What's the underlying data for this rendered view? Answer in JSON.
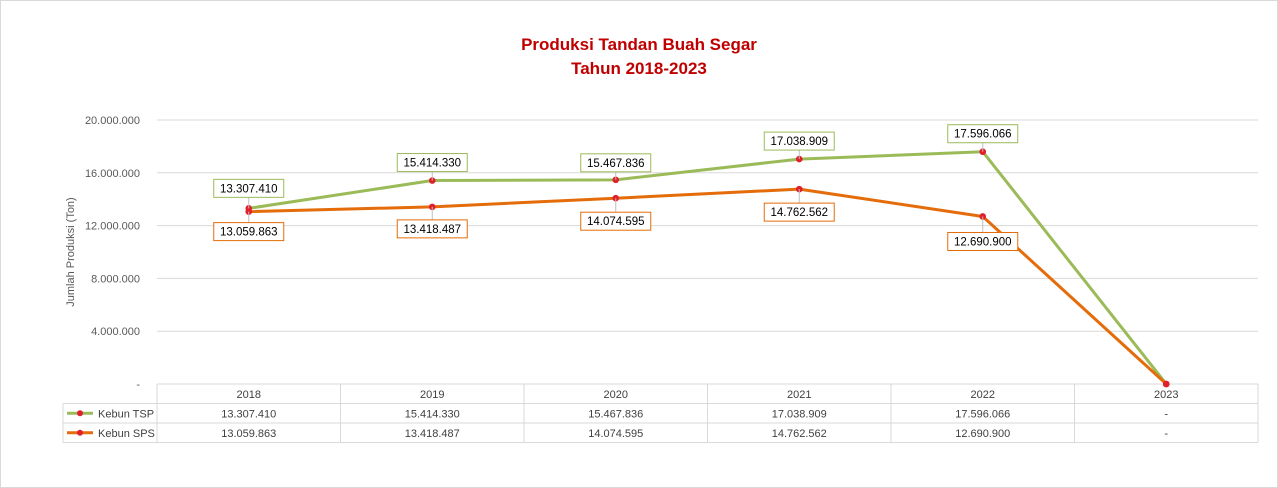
{
  "chart_data": {
    "type": "line",
    "title": "Produksi Tandan Buah Segar",
    "subtitle": "Tahun 2018-2023",
    "ylabel": "Jumlah Produksi (Ton)",
    "ylim": [
      0,
      20000000
    ],
    "yticks": [
      0,
      4000000,
      8000000,
      12000000,
      16000000,
      20000000
    ],
    "ytick_labels": [
      "-",
      "4.000.000",
      "8.000.000",
      "12.000.000",
      "16.000.000",
      "20.000.000"
    ],
    "categories": [
      "2018",
      "2019",
      "2020",
      "2021",
      "2022",
      "2023"
    ],
    "grid": true,
    "legend": "data-table",
    "series": [
      {
        "name": "Kebun TSP",
        "color": "#9bbb59",
        "values": [
          13307410,
          15414330,
          15467836,
          17038909,
          17596066,
          0
        ],
        "labels": [
          "13.307.410",
          "15.414.330",
          "15.467.836",
          "17.038.909",
          "17.596.066",
          "-"
        ]
      },
      {
        "name": "Kebun SPS",
        "color": "#e46c0a",
        "values": [
          13059863,
          13418487,
          14074595,
          14762562,
          12690900,
          0
        ],
        "labels": [
          "13.059.863",
          "13.418.487",
          "14.074.595",
          "14.762.562",
          "12.690.900",
          "-"
        ]
      }
    ],
    "marker_color": "#e0202a"
  }
}
